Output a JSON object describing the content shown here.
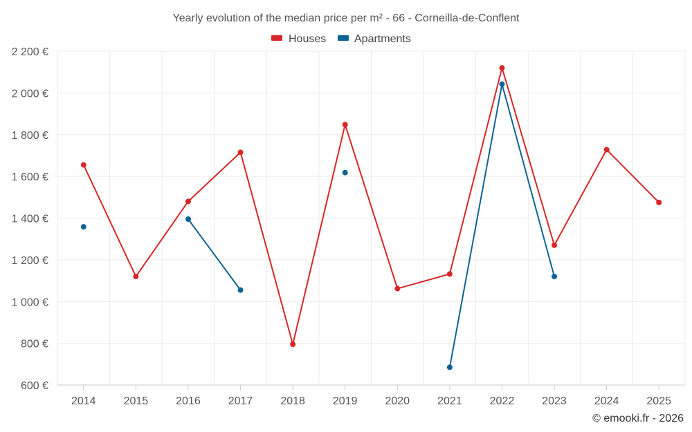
{
  "chart_data": {
    "type": "line",
    "title": "Yearly evolution of the median price per m² - 66 - Corneilla-de-Conflent",
    "categories": [
      "2014",
      "2015",
      "2016",
      "2017",
      "2018",
      "2019",
      "2020",
      "2021",
      "2022",
      "2023",
      "2024",
      "2025"
    ],
    "ylim": [
      600,
      2200
    ],
    "yticks": [
      600,
      800,
      1000,
      1200,
      1400,
      1600,
      1800,
      2000,
      2200
    ],
    "ytick_labels": [
      "600 €",
      "800 €",
      "1 000 €",
      "1 200 €",
      "1 400 €",
      "1 600 €",
      "1 800 €",
      "2 000 €",
      "2 200 €"
    ],
    "xlabel": "",
    "ylabel": "",
    "grid": true,
    "legend_position": "top-center",
    "series": [
      {
        "name": "Houses",
        "color": "#d62728",
        "values": [
          1655,
          1120,
          1480,
          1715,
          795,
          1848,
          1062,
          1132,
          2120,
          1270,
          1728,
          1475
        ]
      },
      {
        "name": "Apartments",
        "color": "#0d6394",
        "values": [
          1358,
          null,
          1395,
          1055,
          null,
          1618,
          null,
          685,
          2042,
          1120,
          null,
          null
        ]
      }
    ]
  },
  "credit": "© emooki.fr - 2026"
}
